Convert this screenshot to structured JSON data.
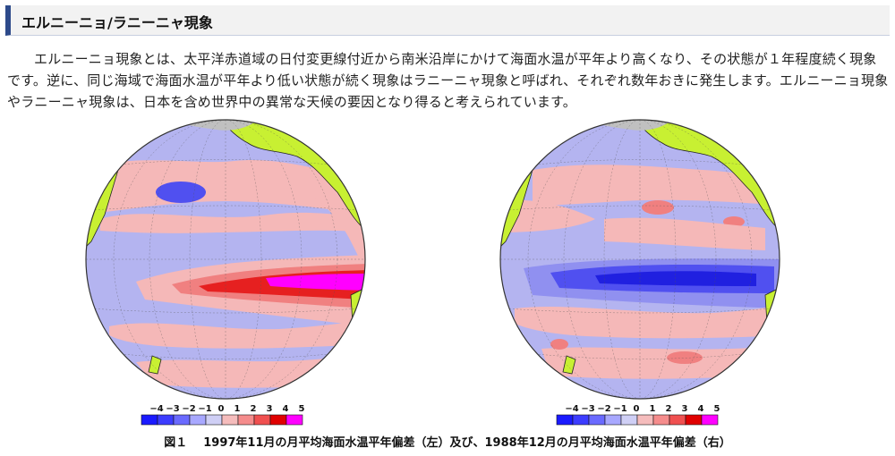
{
  "section": {
    "title": "エルニーニョ/ラニーニャ現象"
  },
  "body": {
    "paragraph": "エルニーニョ現象とは、太平洋赤道域の日付変更線付近から南米沿岸にかけて海面水温が平年より高くなり、その状態が１年程度続く現象です。逆に、同じ海域で海面水温が平年より低い状態が続く現象はラニーニャ現象と呼ばれ、それぞれ数年おきに発生します。エルニーニョ現象やラニーニャ現象は、日本を含め世界中の異常な天候の要因となり得ると考えられています。"
  },
  "figure": {
    "caption_label": "図１",
    "caption_text": "1997年11月の月平均海面水温平年偏差（左）及び、1988年12月の月平均海面水温平年偏差（右）",
    "scale": {
      "labels": [
        "−4",
        "−3",
        "−2",
        "−1",
        "0",
        "1",
        "2",
        "3",
        "4",
        "5"
      ],
      "colors": [
        "#1a1aff",
        "#3c3cff",
        "#6a6aff",
        "#a8a8ff",
        "#cfcff5",
        "#f5bcbc",
        "#f58c8c",
        "#f05050",
        "#e00000",
        "#ff00ff"
      ]
    },
    "colors": {
      "ocean_neutral": "#b4b4f0",
      "warm_1": "#f5b8b8",
      "warm_2": "#f08080",
      "warm_3": "#e62020",
      "warm_5": "#ff00ff",
      "cool_1": "#9090f0",
      "cool_2": "#5050f0",
      "cool_3": "#2020e0",
      "land": "#c8f032",
      "ice": "#c0c0c0"
    }
  }
}
